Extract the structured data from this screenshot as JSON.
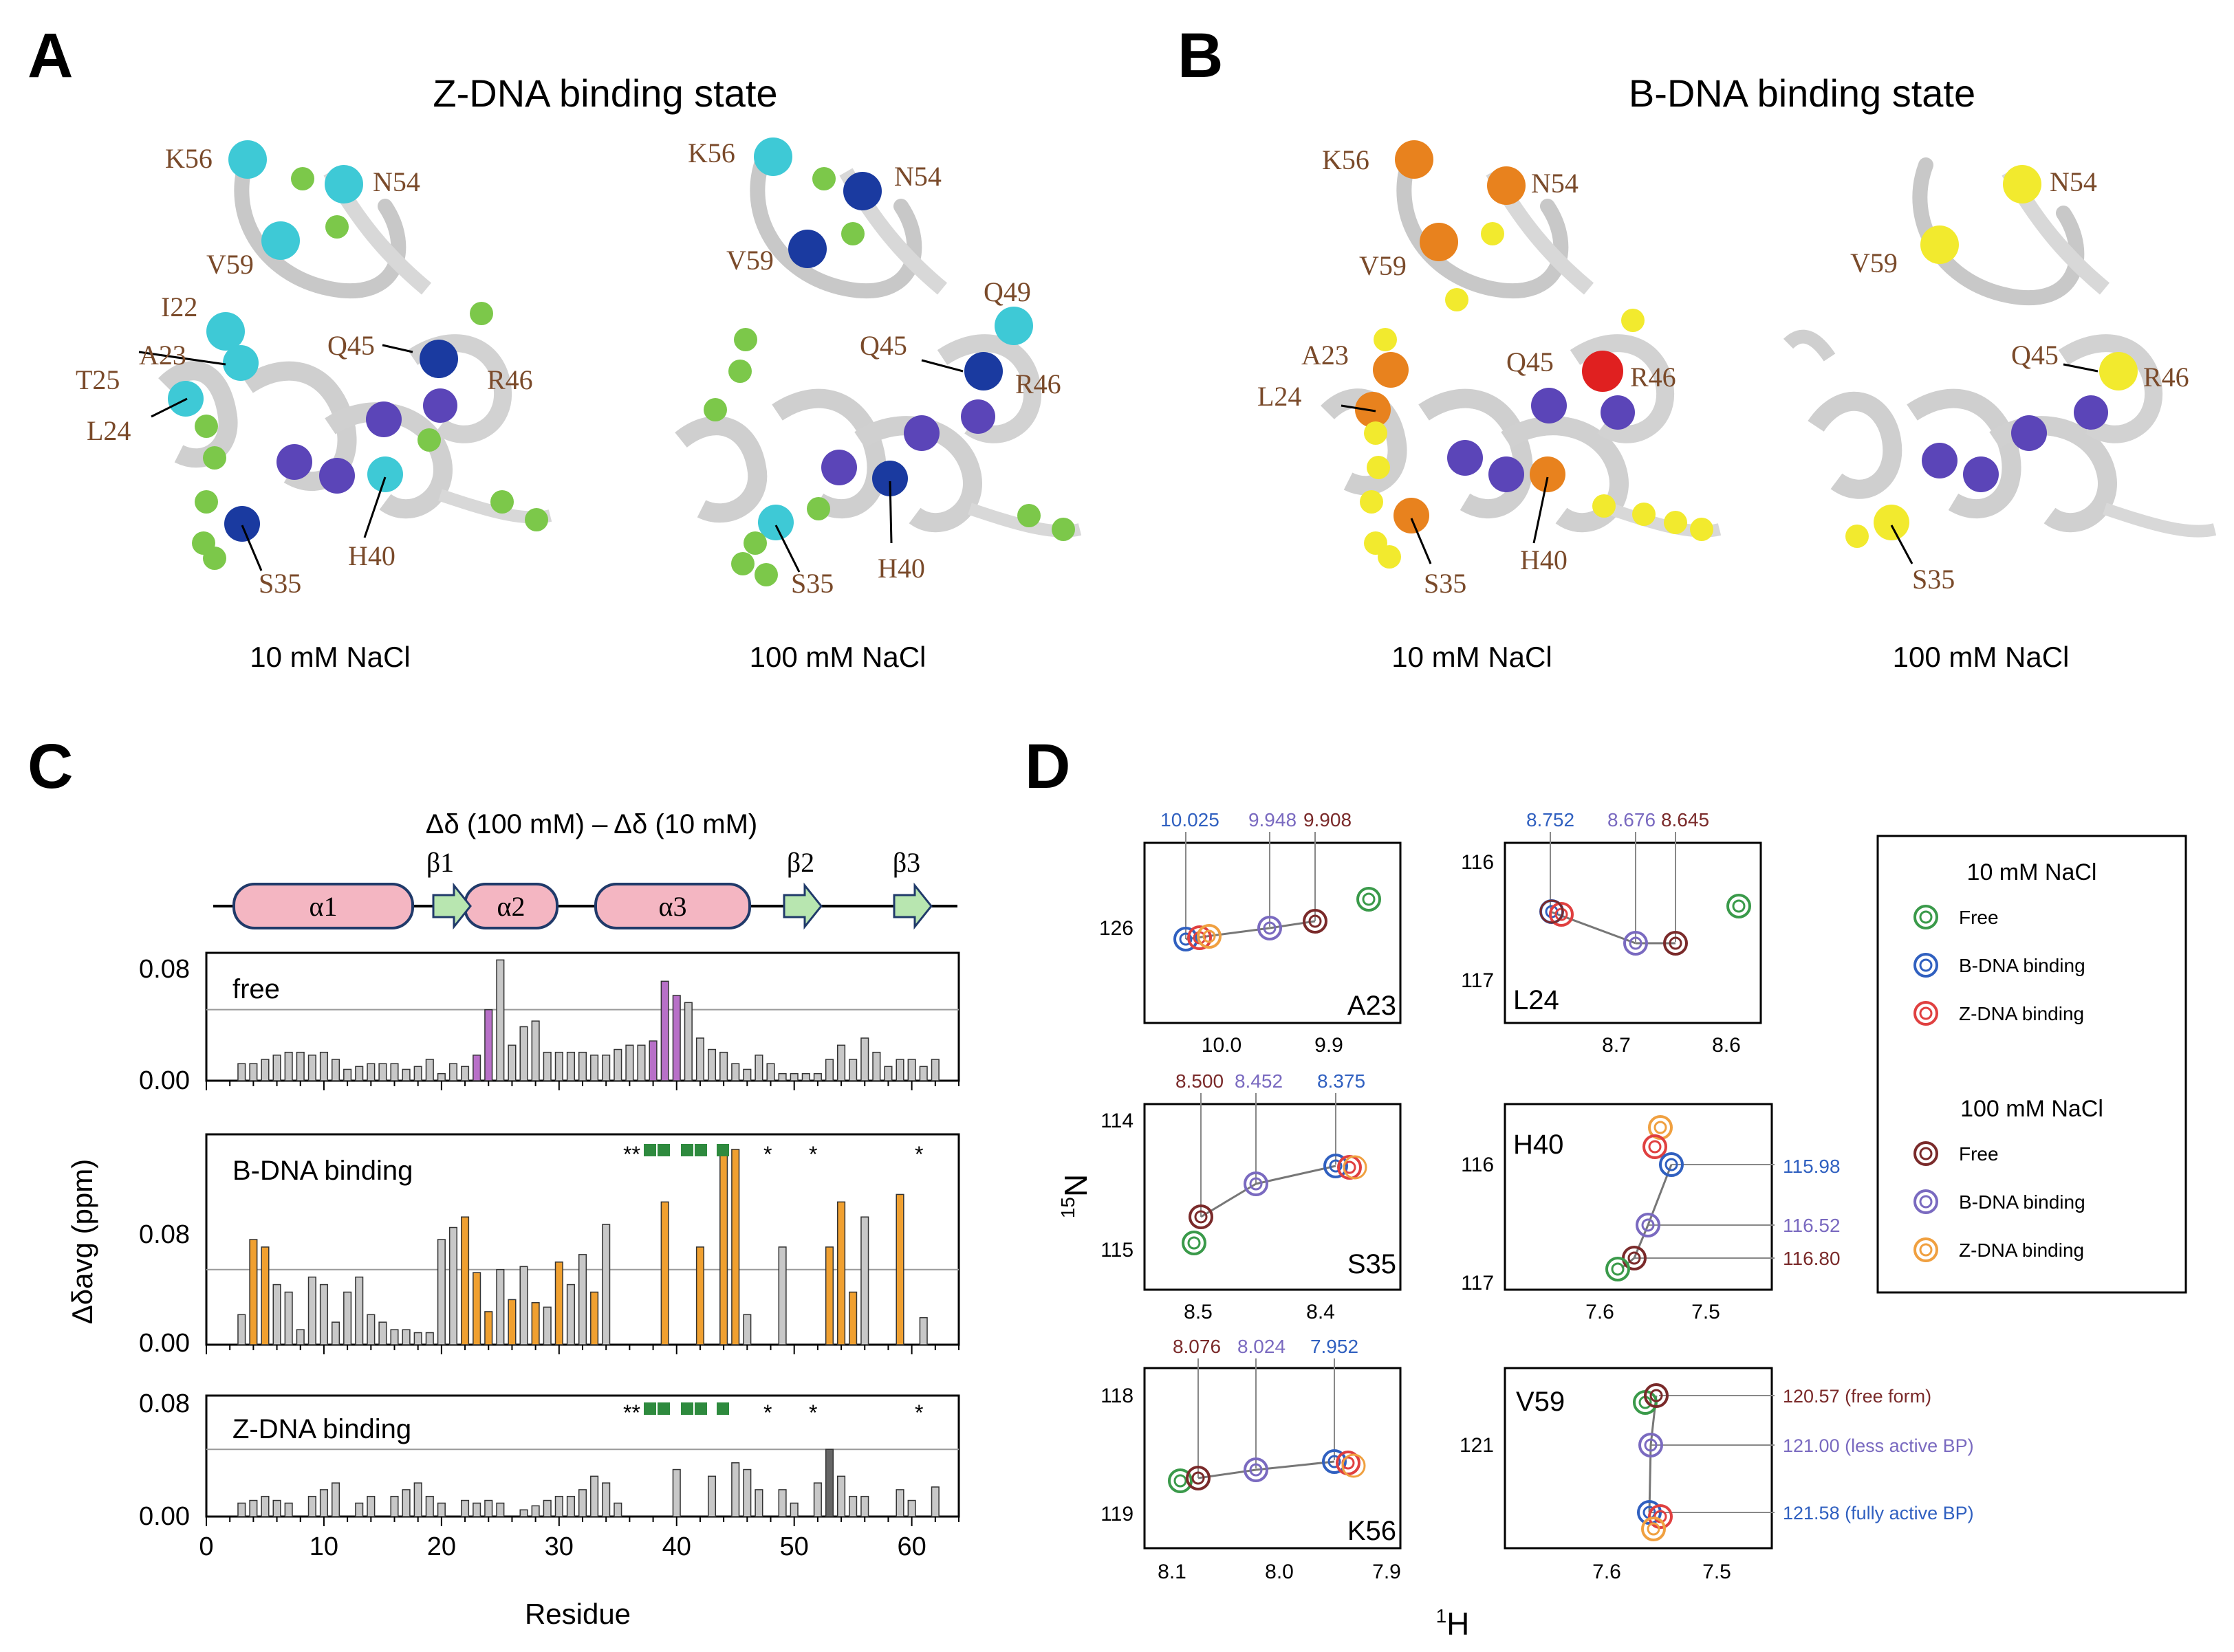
{
  "panels": {
    "A": {
      "letter": "A",
      "title": "Z-DNA binding state",
      "left": {
        "caption": "10 mM NaCl",
        "labels": [
          "K56",
          "N54",
          "V59",
          "I22",
          "A23",
          "T25",
          "L24",
          "Q45",
          "R46",
          "S35",
          "H40"
        ]
      },
      "right": {
        "caption": "100 mM NaCl",
        "labels": [
          "K56",
          "N54",
          "V59",
          "Q49",
          "Q45",
          "R46",
          "S35",
          "H40"
        ]
      }
    },
    "B": {
      "letter": "B",
      "title": "B-DNA binding state",
      "left": {
        "caption": "10 mM NaCl",
        "labels": [
          "K56",
          "N54",
          "V59",
          "A23",
          "L24",
          "Q45",
          "R46",
          "S35",
          "H40"
        ]
      },
      "right": {
        "caption": "100 mM NaCl",
        "labels": [
          "N54",
          "V59",
          "Q45",
          "R46",
          "S35"
        ]
      }
    },
    "C": {
      "letter": "C",
      "delta_title": "Δδ (100 mM)  –  Δδ (10 mM)",
      "secondary_structure": [
        "α1",
        "β1",
        "α2",
        "α3",
        "β2",
        "β3"
      ],
      "ylabel": "Δδavg (ppm)",
      "xlabel": "Residue",
      "xticks": [
        "0",
        "10",
        "20",
        "30",
        "40",
        "50",
        "60"
      ],
      "yticks": [
        "0.00",
        "0.08"
      ],
      "y_middle_tick": "0.08",
      "stars": "**"
    },
    "D": {
      "letter": "D",
      "xlabel": "1H",
      "ylabel": "15N",
      "legend": {
        "group1_title": "10 mM NaCl",
        "group1": [
          "Free",
          "B-DNA binding",
          "Z-DNA binding"
        ],
        "group2_title": "100 mM NaCl",
        "group2": [
          "Free",
          "B-DNA binding",
          "Z-DNA binding"
        ]
      },
      "subplots": {
        "A23": {
          "name": "A23",
          "top_labels": [
            "10.025",
            "9.948",
            "9.908"
          ],
          "xticks": [
            "10.0",
            "9.9"
          ],
          "yticks": [
            "126"
          ]
        },
        "L24": {
          "name": "L24",
          "top_labels": [
            "8.752",
            "8.676",
            "8.645"
          ],
          "xticks": [
            "8.7",
            "8.6"
          ],
          "yticks": [
            "116",
            "117"
          ]
        },
        "S35": {
          "name": "S35",
          "top_labels": [
            "8.500",
            "8.452",
            "8.375"
          ],
          "xticks": [
            "8.5",
            "8.4"
          ],
          "yticks": [
            "114",
            "115"
          ]
        },
        "H40": {
          "name": "H40",
          "right_labels": [
            "115.98",
            "116.52",
            "116.80"
          ],
          "xticks": [
            "7.6",
            "7.5"
          ],
          "yticks": [
            "116",
            "117"
          ]
        },
        "K56": {
          "name": "K56",
          "top_labels": [
            "8.076",
            "8.024",
            "7.952"
          ],
          "xticks": [
            "8.1",
            "8.0",
            "7.9"
          ],
          "yticks": [
            "118",
            "119"
          ]
        },
        "V59": {
          "name": "V59",
          "right_labels": [
            "120.57 (free form)",
            "121.00 (less active BP)",
            "121.58 (fully active BP)"
          ],
          "xticks": [
            "7.6",
            "7.5"
          ],
          "yticks": [
            "121"
          ]
        }
      }
    }
  },
  "colors": {
    "cyan": "#3ec9d6",
    "green": "#7cc84a",
    "navy": "#1a3aa0",
    "purple": "#5b45b8",
    "orange": "#e8821e",
    "yellow": "#f2ea2e",
    "red": "#e02020",
    "bar_gray": "#c8c8c8",
    "bar_orange": "#f0a030",
    "bar_purple": "#b870c8",
    "helix": "#f4b6c2",
    "strand": "#b8e6b0",
    "label_brown": "#7a4a2a",
    "free10": "#3a9a4a",
    "b10": "#3060c0",
    "z10": "#e04040",
    "free100": "#7a2a2a",
    "b100": "#7a6ac0",
    "z100": "#f0a040"
  },
  "chart_data": [
    {
      "type": "bar",
      "title": "free",
      "x": [
        3,
        4,
        5,
        6,
        7,
        8,
        9,
        10,
        11,
        12,
        13,
        14,
        15,
        16,
        17,
        18,
        19,
        20,
        21,
        22,
        23,
        24,
        25,
        26,
        27,
        28,
        29,
        30,
        31,
        32,
        33,
        34,
        35,
        36,
        37,
        38,
        39,
        40,
        41,
        42,
        43,
        44,
        45,
        46,
        47,
        48,
        49,
        50,
        51,
        52,
        53,
        54,
        55,
        56,
        57,
        58,
        59,
        60,
        61,
        62
      ],
      "values": [
        0.012,
        0.012,
        0.015,
        0.018,
        0.02,
        0.02,
        0.018,
        0.02,
        0.015,
        0.008,
        0.01,
        0.012,
        0.012,
        0.012,
        0.008,
        0.01,
        0.015,
        0.005,
        0.012,
        0.01,
        0.018,
        0.05,
        0.085,
        0.025,
        0.038,
        0.042,
        0.02,
        0.02,
        0.02,
        0.02,
        0.018,
        0.018,
        0.022,
        0.025,
        0.025,
        0.028,
        0.07,
        0.06,
        0.055,
        0.03,
        0.022,
        0.02,
        0.012,
        0.008,
        0.018,
        0.012,
        0.005,
        0.005,
        0.005,
        0.005,
        0.015,
        0.025,
        0.015,
        0.03,
        0.02,
        0.01,
        0.015,
        0.015,
        0.01,
        0.015
      ],
      "highlight": [
        23,
        24,
        38,
        39,
        40
      ],
      "ylim": [
        0,
        0.09
      ],
      "threshold": 0.05
    },
    {
      "type": "bar",
      "title": "B-DNA binding",
      "x": [
        3,
        4,
        5,
        6,
        7,
        8,
        9,
        10,
        11,
        12,
        13,
        14,
        15,
        16,
        17,
        18,
        19,
        20,
        21,
        22,
        23,
        24,
        25,
        26,
        27,
        28,
        29,
        30,
        31,
        32,
        33,
        34,
        35,
        39,
        42,
        44,
        45,
        46,
        47,
        49,
        52,
        53,
        54,
        55,
        56,
        59,
        61
      ],
      "values": [
        0.02,
        0.07,
        0.065,
        0.04,
        0.035,
        0.01,
        0.045,
        0.04,
        0.015,
        0.035,
        0.045,
        0.02,
        0.015,
        0.01,
        0.01,
        0.008,
        0.008,
        0.07,
        0.078,
        0.085,
        0.048,
        0.022,
        0.05,
        0.03,
        0.052,
        0.028,
        0.025,
        0.055,
        0.04,
        0.06,
        0.035,
        0.08,
        0.0,
        0.095,
        0.065,
        0.128,
        0.13,
        0.02,
        0.0,
        0.065,
        0.0,
        0.065,
        0.095,
        0.035,
        0.085,
        0.1,
        0.018
      ],
      "highlight_orange": [
        4,
        5,
        22,
        23,
        24,
        26,
        28,
        30,
        33,
        35,
        39,
        42,
        44,
        45,
        48,
        53,
        54,
        55,
        59
      ],
      "ylim": [
        0,
        0.14
      ],
      "threshold": 0.05
    },
    {
      "type": "bar",
      "title": "Z-DNA binding",
      "x": [
        3,
        4,
        5,
        6,
        7,
        9,
        10,
        11,
        13,
        14,
        16,
        17,
        18,
        19,
        20,
        22,
        23,
        24,
        25,
        27,
        28,
        29,
        30,
        31,
        32,
        33,
        34,
        35,
        40,
        43,
        45,
        46,
        47,
        49,
        50,
        52,
        53,
        54,
        55,
        56,
        59,
        60,
        62
      ],
      "values": [
        0.01,
        0.012,
        0.015,
        0.012,
        0.01,
        0.015,
        0.02,
        0.025,
        0.01,
        0.015,
        0.015,
        0.02,
        0.025,
        0.015,
        0.01,
        0.012,
        0.01,
        0.012,
        0.01,
        0.005,
        0.008,
        0.012,
        0.015,
        0.015,
        0.02,
        0.03,
        0.025,
        0.01,
        0.035,
        0.03,
        0.04,
        0.035,
        0.02,
        0.02,
        0.01,
        0.025,
        0.05,
        0.03,
        0.015,
        0.015,
        0.02,
        0.012,
        0.022
      ],
      "ylim": [
        0,
        0.09
      ],
      "threshold": 0.05
    }
  ]
}
